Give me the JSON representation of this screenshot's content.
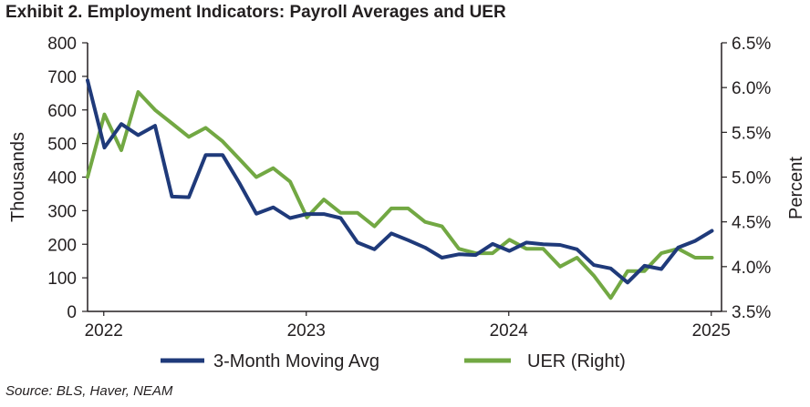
{
  "chart_data": {
    "type": "line",
    "title": "Exhibit 2. Employment Indicators: Payroll Averages and UER",
    "source": "Source: BLS, Haver, NEAM",
    "ylabel_left": "Thousands",
    "ylabel_right": "Percent",
    "ylim_left": [
      0,
      800
    ],
    "ylim_right": [
      3.5,
      6.5
    ],
    "yticks_left": [
      "0",
      "100",
      "200",
      "300",
      "400",
      "500",
      "600",
      "700",
      "800"
    ],
    "yticks_right": [
      "3.5%",
      "4.0%",
      "4.5%",
      "5.0%",
      "5.5%",
      "6.0%",
      "6.5%"
    ],
    "xticks": [
      "2022",
      "2023",
      "2024",
      "2025"
    ],
    "x_start": 2021.92,
    "x_step_months": 1,
    "legend_position": "bottom",
    "series": [
      {
        "name": "3-Month Moving Avg",
        "axis": "left",
        "color": "#1f3a7a",
        "values": [
          688,
          488,
          558,
          525,
          553,
          342,
          340,
          466,
          466,
          382,
          291,
          310,
          278,
          290,
          290,
          278,
          205,
          185,
          232,
          212,
          190,
          160,
          170,
          168,
          201,
          180,
          205,
          200,
          198,
          185,
          138,
          128,
          86,
          136,
          126,
          190,
          210,
          240
        ]
      },
      {
        "name": "UER (Right)",
        "axis": "right",
        "color": "#72a843",
        "values": [
          5.0,
          5.7,
          5.3,
          5.95,
          5.75,
          5.6,
          5.45,
          5.55,
          5.4,
          5.2,
          5.0,
          5.1,
          4.95,
          4.55,
          4.75,
          4.6,
          4.6,
          4.45,
          4.65,
          4.65,
          4.5,
          4.45,
          4.2,
          4.15,
          4.15,
          4.3,
          4.2,
          4.2,
          4.0,
          4.1,
          3.9,
          3.65,
          3.95,
          3.95,
          4.15,
          4.2,
          4.1,
          4.1
        ]
      }
    ]
  }
}
